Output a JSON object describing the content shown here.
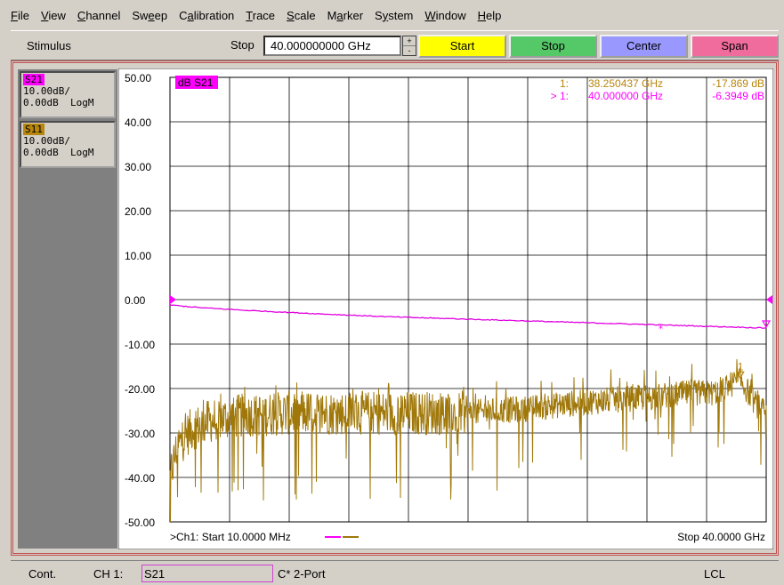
{
  "menu": [
    {
      "label": "File",
      "u": 0
    },
    {
      "label": "View",
      "u": 0
    },
    {
      "label": "Channel",
      "u": 0
    },
    {
      "label": "Sweep",
      "u": 2
    },
    {
      "label": "Calibration",
      "u": 1
    },
    {
      "label": "Trace",
      "u": 0
    },
    {
      "label": "Scale",
      "u": 0
    },
    {
      "label": "Marker",
      "u": 1
    },
    {
      "label": "System",
      "u": 1
    },
    {
      "label": "Window",
      "u": 0
    },
    {
      "label": "Help",
      "u": 0
    }
  ],
  "toolbar": {
    "stimulus_label": "Stimulus",
    "stop_label": "Stop",
    "stop_value": "40.000000000 GHz",
    "spin_up": "+",
    "spin_down": "-",
    "buttons": [
      {
        "label": "Start",
        "color": "#ffff00"
      },
      {
        "label": "Stop",
        "color": "#55c868"
      },
      {
        "label": "Center",
        "color": "#9898ff"
      },
      {
        "label": "Span",
        "color": "#f06c9c"
      }
    ]
  },
  "traces": [
    {
      "name": "S21",
      "scale": "10.00dB/",
      "ref": "0.00dB",
      "format": "LogM",
      "color": "#ff00ff"
    },
    {
      "name": "S11",
      "scale": "10.00dB/",
      "ref": "0.00dB",
      "format": "LogM",
      "color": "#b8860b"
    }
  ],
  "chart_data": {
    "type": "line",
    "active_trace_label": "dB S21",
    "y_tick_labels": [
      "50.00",
      "40.00",
      "30.00",
      "20.00",
      "10.00",
      "0.00",
      "-10.00",
      "-20.00",
      "-30.00",
      "-40.00",
      "-50.00"
    ],
    "ylim": [
      -50,
      50
    ],
    "xlim_ghz": [
      0.01,
      40
    ],
    "grid": true,
    "start_label": ">Ch1: Start  10.0000 MHz",
    "stop_label": "Stop  40.0000 GHz",
    "markers": [
      {
        "prefix": "1:",
        "freq": "38.250437 GHz",
        "value": "-17.869 dB",
        "color": "#b8860b",
        "x_ghz": 38.250437,
        "y_db": -17.869,
        "label": "1"
      },
      {
        "prefix": "> 1:",
        "freq": "40.000000 GHz",
        "value": "-6.3949 dB",
        "color": "#ff00ff",
        "x_ghz": 40.0,
        "y_db": -6.3949,
        "label": ""
      }
    ],
    "series": [
      {
        "name": "S21",
        "color": "#e000e0",
        "x_ghz": [
          0.01,
          2,
          5,
          10,
          15,
          20,
          25,
          30,
          35,
          40
        ],
        "y_db": [
          -1.2,
          -1.8,
          -2.4,
          -3.2,
          -3.9,
          -4.4,
          -4.9,
          -5.4,
          -5.9,
          -6.39
        ]
      },
      {
        "name": "S11",
        "color": "#a0780a",
        "x_ghz": [
          0.01,
          0.5,
          1.5,
          3,
          5,
          8,
          12,
          16,
          20,
          24,
          28,
          32,
          35,
          36.5,
          38.25,
          39.2,
          40
        ],
        "y_db": [
          -40,
          -33,
          -29,
          -27,
          -26,
          -25.5,
          -25.5,
          -25.5,
          -25.5,
          -24.5,
          -23,
          -22,
          -21,
          -21,
          -18,
          -23,
          -26
        ]
      }
    ]
  },
  "status": {
    "mode": "Cont.",
    "channel": "CH 1:",
    "trace": "S21",
    "cal": "C* 2-Port",
    "remote": "LCL"
  }
}
